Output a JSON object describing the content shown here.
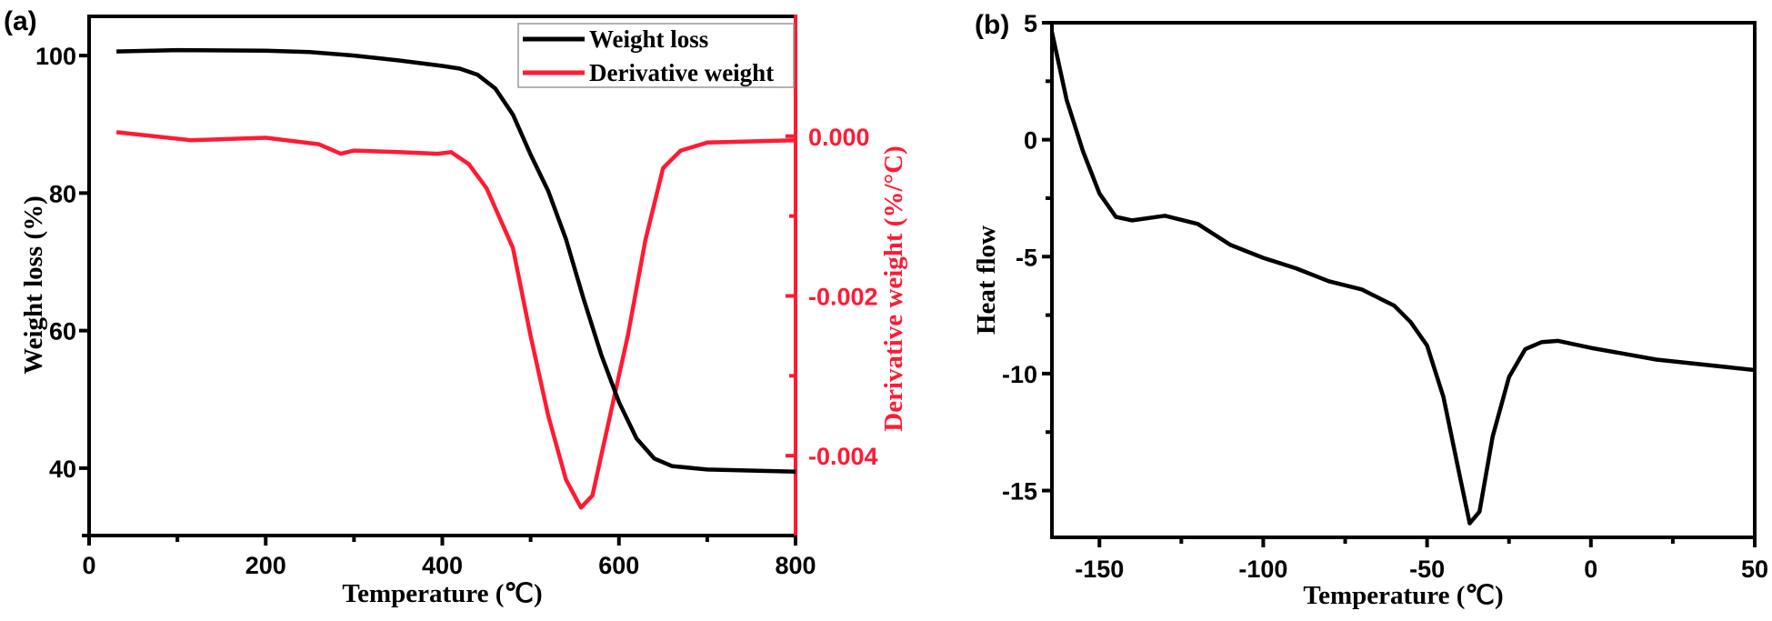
{
  "chart_data": [
    {
      "type": "line",
      "panel_label": "(a)",
      "xlabel": "Temperature (℃)",
      "ylabel": "Weight loss (%)",
      "y2label": "Derivative weight (%/°C)",
      "xlim": [
        0,
        800
      ],
      "ylim": [
        30.2,
        105.7
      ],
      "y2lim": [
        -0.005,
        0.0015
      ],
      "xticks": [
        "0",
        "200",
        "400",
        "600",
        "800"
      ],
      "yticks": [
        "100",
        "80",
        "60",
        "40"
      ],
      "y2ticks": [
        "0.000",
        "-0.002",
        "-0.004"
      ],
      "grid": false,
      "legend_position": "top-right",
      "colors": {
        "weight": "#000000",
        "derivative": "#ff1a33"
      },
      "series": [
        {
          "name": "Weight loss",
          "axis": "left",
          "x": [
            31,
            100,
            200,
            250,
            300,
            350,
            400,
            420,
            440,
            460,
            480,
            500,
            520,
            540,
            560,
            580,
            600,
            620,
            640,
            660,
            700,
            800
          ],
          "y": [
            100.6,
            100.8,
            100.7,
            100.5,
            100.0,
            99.3,
            98.5,
            98.1,
            97.2,
            95.2,
            91.4,
            85.6,
            80.3,
            73.3,
            64.6,
            56.5,
            49.6,
            44.3,
            41.4,
            40.3,
            39.8,
            39.5
          ]
        },
        {
          "name": "Derivative weight",
          "axis": "right",
          "x": [
            31,
            115,
            200,
            260,
            285,
            300,
            350,
            395,
            410,
            430,
            450,
            480,
            500,
            520,
            540,
            557,
            570,
            590,
            610,
            630,
            650,
            670,
            700,
            800
          ],
          "y": [
            5e-05,
            -5e-05,
            -2e-05,
            -0.0001,
            -0.00022,
            -0.00018,
            -0.0002,
            -0.00022,
            -0.0002,
            -0.00035,
            -0.00065,
            -0.0014,
            -0.0025,
            -0.0035,
            -0.0043,
            -0.00465,
            -0.0045,
            -0.0035,
            -0.0025,
            -0.0013,
            -0.0004,
            -0.00018,
            -8e-05,
            -5e-05
          ]
        }
      ]
    },
    {
      "type": "line",
      "panel_label": "(b)",
      "xlabel": "Temperature (℃)",
      "ylabel": "Heat flow",
      "xlim": [
        -164.5,
        50
      ],
      "ylim": [
        -17,
        5
      ],
      "xticks": [
        "-150",
        "-100",
        "-50",
        "0",
        "50"
      ],
      "yticks": [
        "5",
        "0",
        "-5",
        "-10",
        "-15"
      ],
      "grid": false,
      "colors": {
        "line": "#000000"
      },
      "series": [
        {
          "x": [
            -164.5,
            -160,
            -155,
            -150,
            -145,
            -140,
            -130,
            -120,
            -110,
            -100,
            -90,
            -80,
            -70,
            -60,
            -55,
            -50,
            -45,
            -40,
            -37,
            -34,
            -30,
            -25,
            -20,
            -15,
            -10,
            0,
            20,
            50
          ],
          "y": [
            4.6,
            1.7,
            -0.5,
            -2.3,
            -3.3,
            -3.45,
            -3.25,
            -3.6,
            -4.5,
            -5.05,
            -5.5,
            -6.05,
            -6.4,
            -7.1,
            -7.8,
            -8.8,
            -11.0,
            -14.4,
            -16.4,
            -15.9,
            -12.7,
            -10.15,
            -8.95,
            -8.65,
            -8.6,
            -8.9,
            -9.4,
            -9.85
          ]
        }
      ]
    }
  ]
}
